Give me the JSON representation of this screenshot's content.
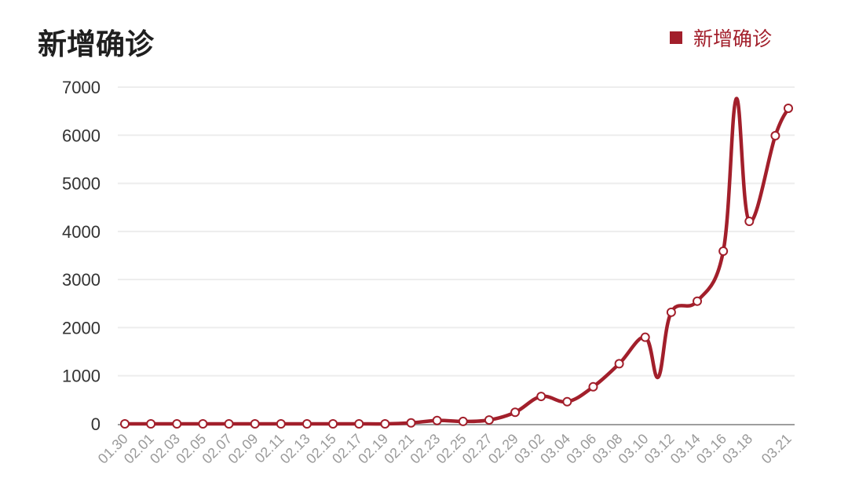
{
  "colors": {
    "series": "#a21f2b",
    "grid": "#ededed",
    "axis": "#9e9e9e",
    "title": "#1f1f1f"
  },
  "chart_data": {
    "type": "line",
    "title": "新增确诊",
    "legend": {
      "position": "top-right"
    },
    "grid": true,
    "ylim": [
      0,
      7000
    ],
    "yticks": [
      "7000",
      "6000",
      "5000",
      "4000",
      "3000",
      "2000",
      "1000",
      "0"
    ],
    "xtick_labels": [
      "01.30",
      "02.01",
      "02.03",
      "02.05",
      "02.07",
      "02.09",
      "02.11",
      "02.13",
      "02.15",
      "02.17",
      "02.19",
      "02.21",
      "02.23",
      "02.25",
      "02.27",
      "02.29",
      "03.02",
      "03.04",
      "03.06",
      "03.08",
      "03.10",
      "03.12",
      "03.14",
      "03.16",
      "03.18",
      "03.21"
    ],
    "series": [
      {
        "name": "新增确诊",
        "points": [
          [
            "01.30",
            0
          ],
          [
            "02.01",
            0
          ],
          [
            "02.03",
            0
          ],
          [
            "02.05",
            0
          ],
          [
            "02.07",
            0
          ],
          [
            "02.09",
            0
          ],
          [
            "02.11",
            0
          ],
          [
            "02.13",
            0
          ],
          [
            "02.15",
            0
          ],
          [
            "02.17",
            0
          ],
          [
            "02.19",
            0
          ],
          [
            "02.21",
            20
          ],
          [
            "02.23",
            70
          ],
          [
            "02.25",
            50
          ],
          [
            "02.27",
            80
          ],
          [
            "02.29",
            240
          ],
          [
            "03.02",
            570
          ],
          [
            "03.04",
            460
          ],
          [
            "03.06",
            770
          ],
          [
            "03.08",
            1250
          ],
          [
            "03.10",
            1800
          ],
          [
            "03.11",
            970
          ],
          [
            "03.12",
            2320
          ],
          [
            "03.14",
            2550
          ],
          [
            "03.16",
            3590
          ],
          [
            "03.17",
            6760
          ],
          [
            "03.18",
            4210
          ],
          [
            "03.20",
            5990
          ],
          [
            "03.21",
            6560
          ]
        ],
        "markers_hidden_at": [
          "03.11",
          "03.17"
        ]
      }
    ]
  }
}
